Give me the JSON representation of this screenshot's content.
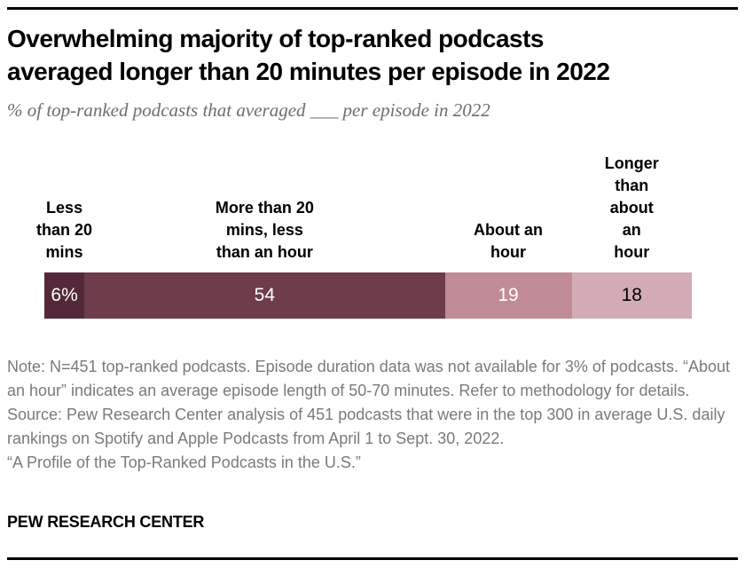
{
  "header": {
    "title": "Overwhelming majority of top-ranked podcasts\naveraged longer than 20 minutes per episode in 2022",
    "subtitle": "% of top-ranked podcasts that averaged ___ per episode in 2022"
  },
  "chart_data": {
    "type": "bar",
    "orientation": "horizontal",
    "stacked": true,
    "title": "Overwhelming majority of top-ranked podcasts averaged longer than 20 minutes per episode in 2022",
    "subtitle": "% of top-ranked podcasts that averaged ___ per episode in 2022",
    "categories": [
      "Less than 20 mins",
      "More than 20 mins, less than an hour",
      "About an hour",
      "Longer than about an hour"
    ],
    "categories_display": [
      "Less\nthan 20\nmins",
      "More than 20\nmins, less\nthan an hour",
      "About an\nhour",
      "Longer than\nabout an\nhour"
    ],
    "values": [
      6,
      54,
      19,
      18
    ],
    "display_values": [
      "6%",
      "54",
      "19",
      "18"
    ],
    "colors": [
      "#532939",
      "#6f3c4b",
      "#c08b96",
      "#d3abb4"
    ],
    "value_text_colors": [
      "#ffffff",
      "#ffffff",
      "#ffffff",
      "#000000"
    ],
    "xlabel": "",
    "ylabel": "",
    "legend": "none",
    "grid": false,
    "unit": "%"
  },
  "notes": {
    "note": "Note: N=451 top-ranked podcasts. Episode duration data was not available for 3% of podcasts. “About an hour” indicates an average episode length of 50-70 minutes. Refer to methodology for details.",
    "source": "Source: Pew Research Center analysis of 451 podcasts that were in the top 300 in average U.S. daily rankings on Spotify and Apple Podcasts from April 1 to Sept. 30, 2022.",
    "citation": "“A Profile of the Top-Ranked Podcasts in the U.S.”"
  },
  "footer": {
    "brand": "PEW RESEARCH CENTER"
  }
}
